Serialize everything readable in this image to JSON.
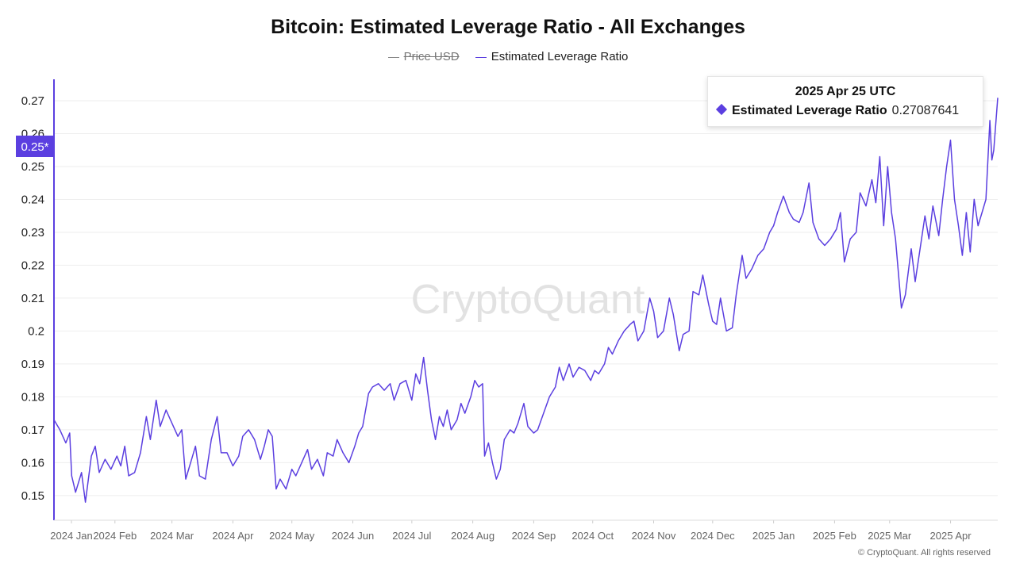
{
  "chart_data": {
    "type": "line",
    "title": "Bitcoin: Estimated Leverage Ratio - All Exchanges",
    "legend": [
      {
        "name": "Price USD",
        "hidden": true,
        "color": "#888888"
      },
      {
        "name": "Estimated Leverage Ratio",
        "hidden": false,
        "color": "#5b3fe0"
      }
    ],
    "x_range": [
      "2024-01-01",
      "2025-04-25"
    ],
    "ylim": [
      0.1425,
      0.2765
    ],
    "y_ticks": [
      "0.15",
      "0.16",
      "0.17",
      "0.18",
      "0.19",
      "0.2",
      "0.21",
      "0.22",
      "0.23",
      "0.24",
      "0.25",
      "0.26",
      "0.27"
    ],
    "y_marker": "0.25*",
    "x_ticks": [
      "2024 Jan",
      "2024 Feb",
      "2024 Mar",
      "2024 Apr",
      "2024 May",
      "2024 Jun",
      "2024 Jul",
      "2024 Aug",
      "2024 Sep",
      "2024 Oct",
      "2024 Nov",
      "2024 Dec",
      "2025 Jan",
      "2025 Feb",
      "2025 Mar",
      "2025 Apr"
    ],
    "series": [
      {
        "name": "Estimated Leverage Ratio",
        "points": [
          [
            "2024-01-01",
            0.173
          ],
          [
            "2024-01-04",
            0.17
          ],
          [
            "2024-01-07",
            0.166
          ],
          [
            "2024-01-09",
            0.169
          ],
          [
            "2024-01-10",
            0.156
          ],
          [
            "2024-01-12",
            0.151
          ],
          [
            "2024-01-15",
            0.157
          ],
          [
            "2024-01-17",
            0.148
          ],
          [
            "2024-01-20",
            0.162
          ],
          [
            "2024-01-22",
            0.165
          ],
          [
            "2024-01-24",
            0.157
          ],
          [
            "2024-01-27",
            0.161
          ],
          [
            "2024-01-30",
            0.158
          ],
          [
            "2024-02-02",
            0.162
          ],
          [
            "2024-02-04",
            0.159
          ],
          [
            "2024-02-06",
            0.165
          ],
          [
            "2024-02-08",
            0.156
          ],
          [
            "2024-02-11",
            0.157
          ],
          [
            "2024-02-14",
            0.163
          ],
          [
            "2024-02-17",
            0.174
          ],
          [
            "2024-02-19",
            0.167
          ],
          [
            "2024-02-22",
            0.179
          ],
          [
            "2024-02-24",
            0.171
          ],
          [
            "2024-02-27",
            0.176
          ],
          [
            "2024-03-01",
            0.172
          ],
          [
            "2024-03-04",
            0.168
          ],
          [
            "2024-03-06",
            0.17
          ],
          [
            "2024-03-08",
            0.155
          ],
          [
            "2024-03-11",
            0.161
          ],
          [
            "2024-03-13",
            0.165
          ],
          [
            "2024-03-15",
            0.156
          ],
          [
            "2024-03-18",
            0.155
          ],
          [
            "2024-03-21",
            0.167
          ],
          [
            "2024-03-24",
            0.174
          ],
          [
            "2024-03-26",
            0.163
          ],
          [
            "2024-03-29",
            0.163
          ],
          [
            "2024-04-01",
            0.159
          ],
          [
            "2024-04-04",
            0.162
          ],
          [
            "2024-04-06",
            0.168
          ],
          [
            "2024-04-09",
            0.17
          ],
          [
            "2024-04-12",
            0.167
          ],
          [
            "2024-04-15",
            0.161
          ],
          [
            "2024-04-17",
            0.165
          ],
          [
            "2024-04-19",
            0.17
          ],
          [
            "2024-04-21",
            0.168
          ],
          [
            "2024-04-23",
            0.152
          ],
          [
            "2024-04-25",
            0.155
          ],
          [
            "2024-04-28",
            0.152
          ],
          [
            "2024-05-01",
            0.158
          ],
          [
            "2024-05-03",
            0.156
          ],
          [
            "2024-05-06",
            0.16
          ],
          [
            "2024-05-09",
            0.164
          ],
          [
            "2024-05-11",
            0.158
          ],
          [
            "2024-05-14",
            0.161
          ],
          [
            "2024-05-17",
            0.156
          ],
          [
            "2024-05-19",
            0.163
          ],
          [
            "2024-05-22",
            0.162
          ],
          [
            "2024-05-24",
            0.167
          ],
          [
            "2024-05-27",
            0.163
          ],
          [
            "2024-05-30",
            0.16
          ],
          [
            "2024-06-02",
            0.165
          ],
          [
            "2024-06-04",
            0.169
          ],
          [
            "2024-06-06",
            0.171
          ],
          [
            "2024-06-09",
            0.181
          ],
          [
            "2024-06-11",
            0.183
          ],
          [
            "2024-06-14",
            0.184
          ],
          [
            "2024-06-17",
            0.182
          ],
          [
            "2024-06-20",
            0.184
          ],
          [
            "2024-06-22",
            0.179
          ],
          [
            "2024-06-25",
            0.184
          ],
          [
            "2024-06-28",
            0.185
          ],
          [
            "2024-07-01",
            0.179
          ],
          [
            "2024-07-03",
            0.187
          ],
          [
            "2024-07-05",
            0.184
          ],
          [
            "2024-07-07",
            0.192
          ],
          [
            "2024-07-09",
            0.182
          ],
          [
            "2024-07-11",
            0.173
          ],
          [
            "2024-07-13",
            0.167
          ],
          [
            "2024-07-15",
            0.174
          ],
          [
            "2024-07-17",
            0.171
          ],
          [
            "2024-07-19",
            0.176
          ],
          [
            "2024-07-21",
            0.17
          ],
          [
            "2024-07-24",
            0.173
          ],
          [
            "2024-07-26",
            0.178
          ],
          [
            "2024-07-28",
            0.175
          ],
          [
            "2024-07-31",
            0.18
          ],
          [
            "2024-08-02",
            0.185
          ],
          [
            "2024-08-04",
            0.183
          ],
          [
            "2024-08-06",
            0.184
          ],
          [
            "2024-08-07",
            0.162
          ],
          [
            "2024-08-09",
            0.166
          ],
          [
            "2024-08-11",
            0.16
          ],
          [
            "2024-08-13",
            0.155
          ],
          [
            "2024-08-15",
            0.158
          ],
          [
            "2024-08-17",
            0.167
          ],
          [
            "2024-08-20",
            0.17
          ],
          [
            "2024-08-22",
            0.169
          ],
          [
            "2024-08-24",
            0.172
          ],
          [
            "2024-08-27",
            0.178
          ],
          [
            "2024-08-29",
            0.171
          ],
          [
            "2024-09-01",
            0.169
          ],
          [
            "2024-09-03",
            0.17
          ],
          [
            "2024-09-06",
            0.175
          ],
          [
            "2024-09-09",
            0.18
          ],
          [
            "2024-09-12",
            0.183
          ],
          [
            "2024-09-14",
            0.189
          ],
          [
            "2024-09-16",
            0.185
          ],
          [
            "2024-09-19",
            0.19
          ],
          [
            "2024-09-21",
            0.186
          ],
          [
            "2024-09-24",
            0.189
          ],
          [
            "2024-09-27",
            0.188
          ],
          [
            "2024-09-30",
            0.185
          ],
          [
            "2024-10-02",
            0.188
          ],
          [
            "2024-10-04",
            0.187
          ],
          [
            "2024-10-07",
            0.19
          ],
          [
            "2024-10-09",
            0.195
          ],
          [
            "2024-10-11",
            0.193
          ],
          [
            "2024-10-14",
            0.197
          ],
          [
            "2024-10-17",
            0.2
          ],
          [
            "2024-10-20",
            0.202
          ],
          [
            "2024-10-22",
            0.203
          ],
          [
            "2024-10-24",
            0.197
          ],
          [
            "2024-10-27",
            0.2
          ],
          [
            "2024-10-30",
            0.21
          ],
          [
            "2024-11-01",
            0.206
          ],
          [
            "2024-11-03",
            0.198
          ],
          [
            "2024-11-06",
            0.2
          ],
          [
            "2024-11-09",
            0.21
          ],
          [
            "2024-11-11",
            0.205
          ],
          [
            "2024-11-14",
            0.194
          ],
          [
            "2024-11-16",
            0.199
          ],
          [
            "2024-11-19",
            0.2
          ],
          [
            "2024-11-21",
            0.212
          ],
          [
            "2024-11-24",
            0.211
          ],
          [
            "2024-11-26",
            0.217
          ],
          [
            "2024-11-29",
            0.208
          ],
          [
            "2024-12-01",
            0.203
          ],
          [
            "2024-12-03",
            0.202
          ],
          [
            "2024-12-05",
            0.21
          ],
          [
            "2024-12-08",
            0.2
          ],
          [
            "2024-12-11",
            0.201
          ],
          [
            "2024-12-13",
            0.211
          ],
          [
            "2024-12-16",
            0.223
          ],
          [
            "2024-12-18",
            0.216
          ],
          [
            "2024-12-21",
            0.219
          ],
          [
            "2024-12-24",
            0.223
          ],
          [
            "2024-12-27",
            0.225
          ],
          [
            "2024-12-30",
            0.23
          ],
          [
            "2025-01-01",
            0.232
          ],
          [
            "2025-01-03",
            0.236
          ],
          [
            "2025-01-06",
            0.241
          ],
          [
            "2025-01-09",
            0.236
          ],
          [
            "2025-01-11",
            0.234
          ],
          [
            "2025-01-14",
            0.233
          ],
          [
            "2025-01-16",
            0.236
          ],
          [
            "2025-01-19",
            0.245
          ],
          [
            "2025-01-21",
            0.233
          ],
          [
            "2025-01-24",
            0.228
          ],
          [
            "2025-01-27",
            0.226
          ],
          [
            "2025-01-30",
            0.228
          ],
          [
            "2025-02-02",
            0.231
          ],
          [
            "2025-02-04",
            0.236
          ],
          [
            "2025-02-06",
            0.221
          ],
          [
            "2025-02-09",
            0.228
          ],
          [
            "2025-02-12",
            0.23
          ],
          [
            "2025-02-14",
            0.242
          ],
          [
            "2025-02-17",
            0.238
          ],
          [
            "2025-02-20",
            0.246
          ],
          [
            "2025-02-22",
            0.239
          ],
          [
            "2025-02-24",
            0.253
          ],
          [
            "2025-02-26",
            0.232
          ],
          [
            "2025-02-28",
            0.25
          ],
          [
            "2025-03-02",
            0.236
          ],
          [
            "2025-03-04",
            0.228
          ],
          [
            "2025-03-07",
            0.207
          ],
          [
            "2025-03-09",
            0.211
          ],
          [
            "2025-03-12",
            0.225
          ],
          [
            "2025-03-14",
            0.215
          ],
          [
            "2025-03-17",
            0.227
          ],
          [
            "2025-03-19",
            0.235
          ],
          [
            "2025-03-21",
            0.228
          ],
          [
            "2025-03-23",
            0.238
          ],
          [
            "2025-03-26",
            0.229
          ],
          [
            "2025-03-28",
            0.24
          ],
          [
            "2025-03-30",
            0.25
          ],
          [
            "2025-04-01",
            0.258
          ],
          [
            "2025-04-03",
            0.24
          ],
          [
            "2025-04-05",
            0.232
          ],
          [
            "2025-04-07",
            0.223
          ],
          [
            "2025-04-09",
            0.236
          ],
          [
            "2025-04-11",
            0.224
          ],
          [
            "2025-04-13",
            0.24
          ],
          [
            "2025-04-15",
            0.232
          ],
          [
            "2025-04-17",
            0.236
          ],
          [
            "2025-04-19",
            0.24
          ],
          [
            "2025-04-21",
            0.264
          ],
          [
            "2025-04-22",
            0.252
          ],
          [
            "2025-04-23",
            0.255
          ],
          [
            "2025-04-25",
            0.27087641
          ]
        ]
      }
    ],
    "watermark": "CryptoQuant"
  },
  "tooltip": {
    "date": "2025 Apr 25 UTC",
    "series_name": "Estimated Leverage Ratio",
    "value": "0.27087641"
  },
  "footer": {
    "copyright": "© CryptoQuant. All rights reserved"
  },
  "colors": {
    "line": "#5b3fe0",
    "axis": "#5b3fe0",
    "grid": "#eeeeee",
    "tick_text": "#222222",
    "x_tick_text": "#666666"
  }
}
